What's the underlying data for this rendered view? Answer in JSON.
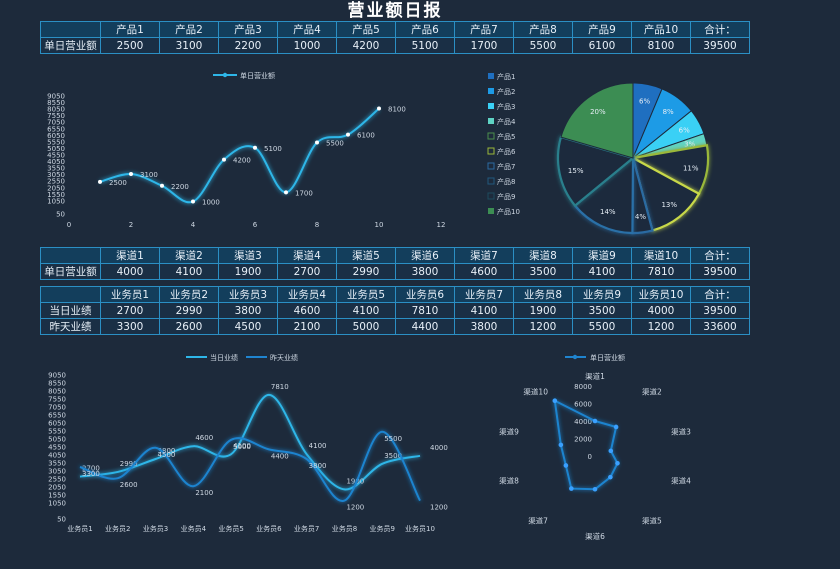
{
  "title": "营业额日报",
  "table_products": {
    "headers": [
      "",
      "产品1",
      "产品2",
      "产品3",
      "产品4",
      "产品5",
      "产品6",
      "产品7",
      "产品8",
      "产品9",
      "产品10",
      "合计："
    ],
    "rows": [
      {
        "label": "单日营业额",
        "values": [
          "2500",
          "3100",
          "2200",
          "1000",
          "4200",
          "5100",
          "1700",
          "5500",
          "6100",
          "8100",
          "39500"
        ]
      }
    ]
  },
  "table_channels": {
    "headers": [
      "",
      "渠道1",
      "渠道2",
      "渠道3",
      "渠道4",
      "渠道5",
      "渠道6",
      "渠道7",
      "渠道8",
      "渠道9",
      "渠道10",
      "合计："
    ],
    "rows": [
      {
        "label": "单日营业额",
        "values": [
          "4000",
          "4100",
          "1900",
          "2700",
          "2990",
          "3800",
          "4600",
          "3500",
          "4100",
          "7810",
          "39500"
        ]
      }
    ]
  },
  "table_staff": {
    "headers": [
      "",
      "业务员1",
      "业务员2",
      "业务员3",
      "业务员4",
      "业务员5",
      "业务员6",
      "业务员7",
      "业务员8",
      "业务员9",
      "业务员10",
      "合计："
    ],
    "rows": [
      {
        "label": "当日业绩",
        "values": [
          "2700",
          "2990",
          "3800",
          "4600",
          "4100",
          "7810",
          "4100",
          "1900",
          "3500",
          "4000",
          "39500"
        ]
      },
      {
        "label": "昨天业绩",
        "values": [
          "3300",
          "2600",
          "4500",
          "2100",
          "5000",
          "4400",
          "3800",
          "1200",
          "5500",
          "1200",
          "33600"
        ]
      }
    ]
  },
  "colors": {
    "background": "#1d2a3b",
    "line": "#2eb6e8",
    "line2": "#1f84cf",
    "pie": [
      "#1f6fc0",
      "#1d9be6",
      "#3ad0f5",
      "#5fd3c4",
      "#4a8f4d",
      "#9ab83a",
      "#2b6aa2",
      "#21587d",
      "#1d4b5e",
      "#3c8d53"
    ]
  },
  "chart_data": [
    {
      "type": "line",
      "legend": [
        "单日营业额"
      ],
      "series": [
        {
          "name": "单日营业额",
          "x": [
            1,
            2,
            3,
            4,
            5,
            6,
            7,
            8,
            9,
            10
          ],
          "values": [
            2500,
            3100,
            2200,
            1000,
            4200,
            5100,
            1700,
            5500,
            6100,
            8100
          ]
        }
      ],
      "xlim": [
        0,
        12
      ],
      "xticks": [
        0,
        2,
        4,
        6,
        8,
        10,
        12
      ],
      "ylim": [
        50,
        9050
      ],
      "yticks": [
        50,
        1050,
        1550,
        2050,
        2550,
        3050,
        3550,
        4050,
        4550,
        5050,
        5550,
        6050,
        6550,
        7050,
        7550,
        8050,
        8550,
        9050
      ],
      "ytick_labels": [
        "50",
        "1050",
        "1550",
        "2050",
        "2550",
        "3050",
        "3550",
        "4050",
        "4550",
        "5050",
        "5550",
        "6050",
        "6550",
        "7050",
        "7550",
        "8050",
        "8550",
        "9050"
      ],
      "legend_position": "top"
    },
    {
      "type": "pie",
      "categories": [
        "产品1",
        "产品2",
        "产品3",
        "产品4",
        "产品5",
        "产品6",
        "产品7",
        "产品8",
        "产品9",
        "产品10"
      ],
      "values": [
        2500,
        3100,
        2200,
        1000,
        4200,
        5100,
        1700,
        5500,
        6100,
        8100
      ],
      "labels": [
        "6%",
        "8%",
        "6%",
        "3%",
        "11%",
        "13%",
        "4%",
        "14%",
        "15%",
        "20%"
      ],
      "legend_position": "left"
    },
    {
      "type": "line",
      "legend": [
        "当日业绩",
        "昨天业绩"
      ],
      "categories": [
        "业务员1",
        "业务员2",
        "业务员3",
        "业务员4",
        "业务员5",
        "业务员6",
        "业务员7",
        "业务员8",
        "业务员9",
        "业务员10"
      ],
      "series": [
        {
          "name": "当日业绩",
          "values": [
            2700,
            2990,
            3800,
            4600,
            4100,
            7810,
            4100,
            1900,
            3500,
            4000
          ]
        },
        {
          "name": "昨天业绩",
          "values": [
            3300,
            2600,
            4500,
            2100,
            5000,
            4400,
            3800,
            1200,
            5500,
            1200
          ]
        }
      ],
      "ylim": [
        50,
        9050
      ],
      "yticks": [
        50,
        1050,
        1550,
        2050,
        2550,
        3050,
        3550,
        4050,
        4550,
        5050,
        5550,
        6050,
        6550,
        7050,
        7550,
        8050,
        8550,
        9050
      ],
      "ytick_labels": [
        "50",
        "1050",
        "1550",
        "2050",
        "2550",
        "3050",
        "3550",
        "4050",
        "4550",
        "5050",
        "5550",
        "6050",
        "6550",
        "7050",
        "7550",
        "8050",
        "8550",
        "9050"
      ],
      "legend_position": "top"
    },
    {
      "type": "radar",
      "legend": [
        "单日营业额"
      ],
      "categories": [
        "渠道1",
        "渠道2",
        "渠道3",
        "渠道4",
        "渠道5",
        "渠道6",
        "渠道7",
        "渠道8",
        "渠道9",
        "渠道10"
      ],
      "values": [
        4000,
        4100,
        1900,
        2700,
        2990,
        3800,
        4600,
        3500,
        4100,
        7810
      ],
      "rlim": [
        0,
        8000
      ],
      "rticks": [
        "0",
        "2000",
        "4000",
        "6000",
        "8000"
      ],
      "legend_position": "top"
    }
  ]
}
